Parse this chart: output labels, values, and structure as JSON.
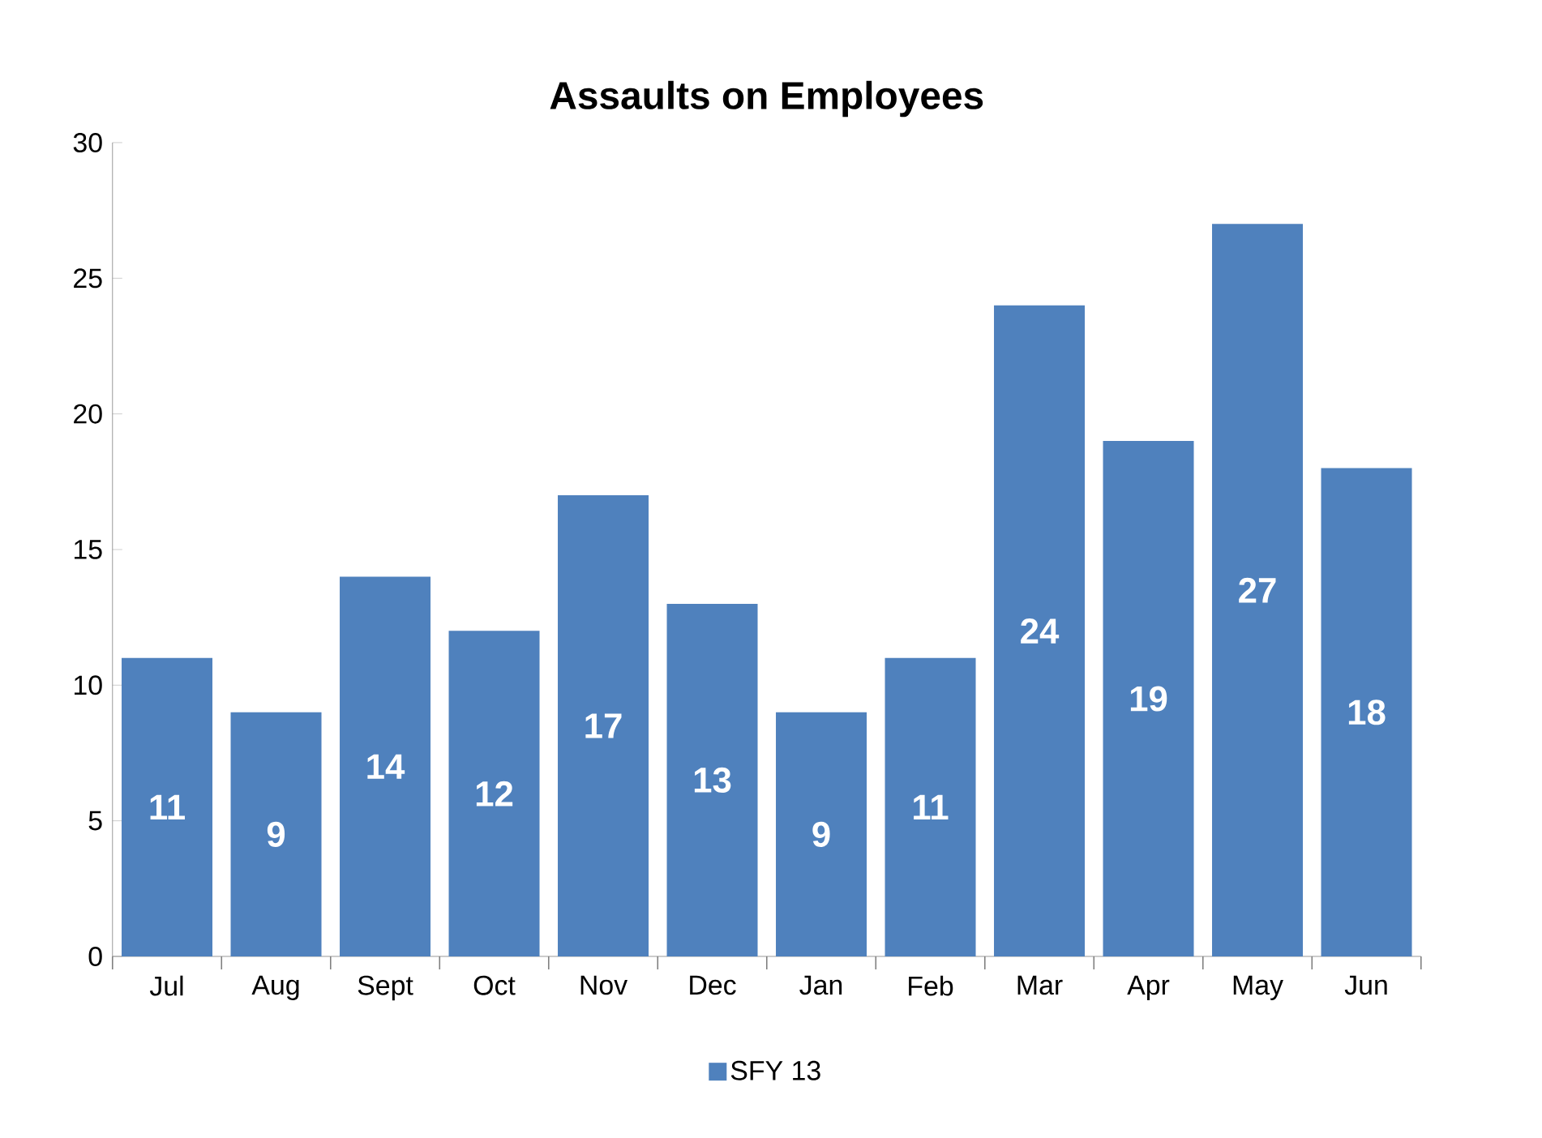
{
  "chart_data": {
    "type": "bar",
    "title": "Assaults on Employees",
    "categories": [
      "Jul",
      "Aug",
      "Sept",
      "Oct",
      "Nov",
      "Dec",
      "Jan",
      "Feb",
      "Mar",
      "Apr",
      "May",
      "Jun"
    ],
    "series": [
      {
        "name": "SFY 13",
        "color": "#4f81bd",
        "values": [
          11,
          9,
          14,
          12,
          17,
          13,
          9,
          11,
          24,
          19,
          27,
          18
        ]
      }
    ],
    "ylim": [
      0,
      30
    ],
    "yticks": [
      0,
      5,
      10,
      15,
      20,
      25,
      30
    ],
    "data_labels": true,
    "grid": false,
    "legend": "bottom"
  }
}
